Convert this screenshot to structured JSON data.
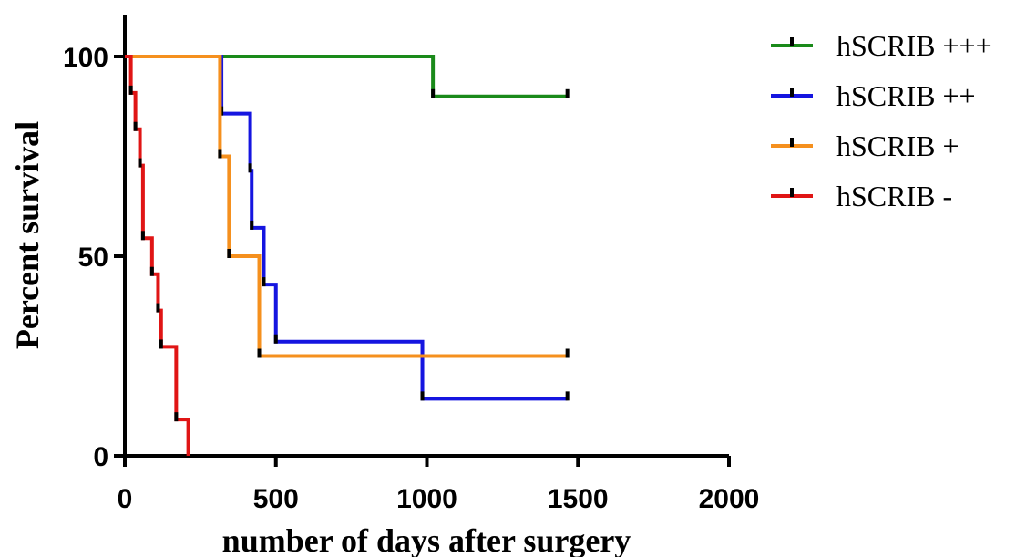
{
  "chart_data": {
    "type": "line",
    "subtype": "kaplan-meier-step",
    "xlabel": "number of days after surgery",
    "ylabel": "Percent survival",
    "xlim": [
      0,
      2000
    ],
    "ylim": [
      0,
      110
    ],
    "xticks": [
      0,
      500,
      1000,
      1500,
      2000
    ],
    "yticks": [
      0,
      50,
      100
    ],
    "x_tick_labels": [
      "0",
      "500",
      "1000",
      "1500",
      "2000"
    ],
    "y_tick_labels": [
      "0",
      "50",
      "100"
    ],
    "grid": false,
    "legend_position": "top-right",
    "series": [
      {
        "name": "hSCRIB +++",
        "color": "#1a8a1a",
        "steps": [
          [
            0,
            100
          ],
          [
            1020,
            90
          ],
          [
            1465,
            90
          ]
        ],
        "censored": [
          [
            1020,
            90
          ],
          [
            1465,
            90
          ]
        ]
      },
      {
        "name": "hSCRIB ++",
        "color": "#1515e0",
        "steps": [
          [
            0,
            100
          ],
          [
            320,
            85.7
          ],
          [
            415,
            71.4
          ],
          [
            420,
            57.1
          ],
          [
            460,
            42.9
          ],
          [
            500,
            28.6
          ],
          [
            985,
            14.3
          ],
          [
            1465,
            14.3
          ]
        ],
        "censored": [
          [
            320,
            85.7
          ],
          [
            415,
            71.4
          ],
          [
            420,
            57.1
          ],
          [
            460,
            42.9
          ],
          [
            500,
            28.6
          ],
          [
            985,
            14.3
          ],
          [
            1465,
            14.3
          ]
        ]
      },
      {
        "name": "hSCRIB +",
        "color": "#f5901e",
        "steps": [
          [
            0,
            100
          ],
          [
            315,
            75
          ],
          [
            345,
            50
          ],
          [
            445,
            25
          ],
          [
            1465,
            25
          ]
        ],
        "censored": [
          [
            315,
            75
          ],
          [
            345,
            50
          ],
          [
            445,
            25
          ],
          [
            1465,
            25
          ]
        ]
      },
      {
        "name": "hSCRIB -",
        "color": "#e01515",
        "steps": [
          [
            0,
            100
          ],
          [
            20,
            90.9
          ],
          [
            35,
            81.8
          ],
          [
            50,
            72.7
          ],
          [
            60,
            54.5
          ],
          [
            90,
            45.5
          ],
          [
            110,
            36.4
          ],
          [
            120,
            27.3
          ],
          [
            170,
            9.1
          ],
          [
            210,
            0
          ]
        ],
        "censored": [
          [
            20,
            90.9
          ],
          [
            35,
            81.8
          ],
          [
            50,
            72.7
          ],
          [
            60,
            54.5
          ],
          [
            90,
            45.5
          ],
          [
            110,
            36.4
          ],
          [
            120,
            27.3
          ],
          [
            170,
            9.1
          ]
        ]
      }
    ]
  }
}
